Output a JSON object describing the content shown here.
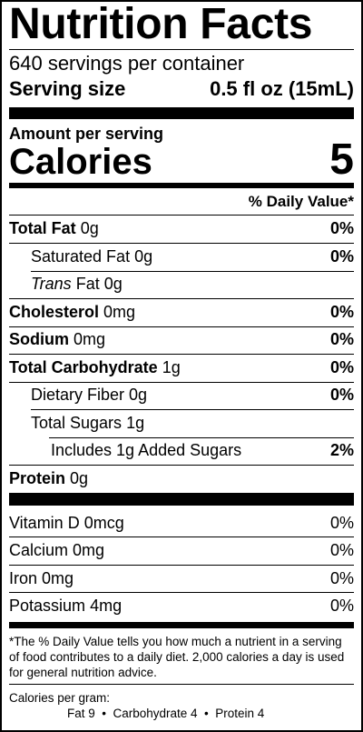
{
  "title": "Nutrition Facts",
  "servings_per_container": "640 servings per container",
  "serving_size": {
    "label": "Serving size",
    "value": "0.5 fl oz (15mL)"
  },
  "amount_per_serving": "Amount per serving",
  "calories": {
    "label": "Calories",
    "value": "5"
  },
  "daily_value_header": "% Daily Value*",
  "nutrients": [
    {
      "name": "Total Fat",
      "amount": "0g",
      "dv": "0%"
    },
    {
      "name": "Saturated Fat",
      "amount": "0g",
      "dv": "0%"
    },
    {
      "name": "Trans",
      "amount": "Fat 0g",
      "dv": ""
    },
    {
      "name": "Cholesterol",
      "amount": "0mg",
      "dv": "0%"
    },
    {
      "name": "Sodium",
      "amount": "0mg",
      "dv": "0%"
    },
    {
      "name": "Total Carbohydrate",
      "amount": "1g",
      "dv": "0%"
    },
    {
      "name": "Dietary Fiber",
      "amount": "0g",
      "dv": "0%"
    },
    {
      "name": "Total Sugars",
      "amount": "1g",
      "dv": ""
    },
    {
      "name": "Includes 1g Added Sugars",
      "amount": "",
      "dv": "2%"
    },
    {
      "name": "Protein",
      "amount": "0g",
      "dv": ""
    }
  ],
  "vitamins": [
    {
      "name": "Vitamin D",
      "amount": "0mcg",
      "dv": "0%"
    },
    {
      "name": "Calcium",
      "amount": "0mg",
      "dv": "0%"
    },
    {
      "name": "Iron",
      "amount": "0mg",
      "dv": "0%"
    },
    {
      "name": "Potassium",
      "amount": "4mg",
      "dv": "0%"
    }
  ],
  "footnote": "*The % Daily Value tells you how much a nutrient in a serving of food contributes to a daily diet. 2,000 calories a day is used for general nutrition advice.",
  "calories_per_gram": {
    "label": "Calories per gram:",
    "line": "Fat 9  •  Carbohydrate 4  •  Protein 4"
  }
}
